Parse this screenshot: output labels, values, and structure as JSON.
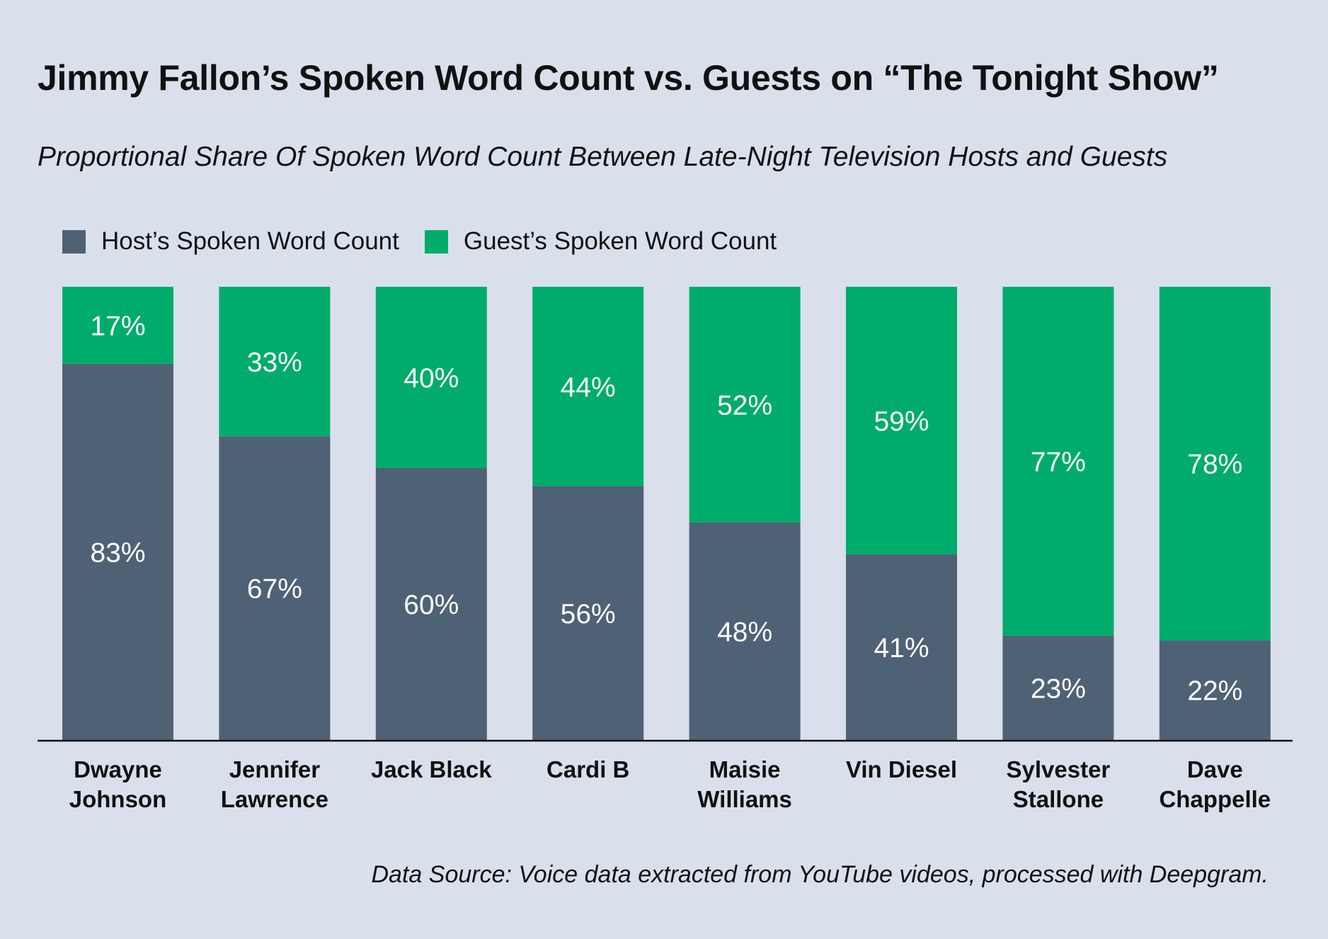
{
  "title": "Jimmy Fallon’s Spoken Word Count vs. Guests on “The Tonight Show”",
  "subtitle": "Proportional Share Of Spoken Word Count Between Late-Night Television Hosts and Guests",
  "source": "Data Source: Voice data extracted from YouTube videos, processed with Deepgram.",
  "colors": {
    "background": "#d9e0ec",
    "host": "#4f6175",
    "guest": "#00ac6b",
    "axis": "#111111",
    "value_label": "#ffffff"
  },
  "chart_data": {
    "type": "bar",
    "stacked": true,
    "categories": [
      [
        "Dwayne",
        "Johnson"
      ],
      [
        "Jennifer",
        "Lawrence"
      ],
      [
        "Jack Black"
      ],
      [
        "Cardi B"
      ],
      [
        "Maisie",
        "Williams"
      ],
      [
        "Vin Diesel"
      ],
      [
        "Sylvester",
        "Stallone"
      ],
      [
        "Dave",
        "Chappelle"
      ]
    ],
    "series": [
      {
        "name": "Host’s Spoken Word Count",
        "values": [
          83,
          67,
          60,
          56,
          48,
          41,
          23,
          22
        ],
        "labels": [
          "83%",
          "67%",
          "60%",
          "56%",
          "48%",
          "41%",
          "23%",
          "22%"
        ]
      },
      {
        "name": "Guest’s Spoken Word Count",
        "values": [
          17,
          33,
          40,
          44,
          52,
          59,
          77,
          78
        ],
        "labels": [
          "17%",
          "33%",
          "40%",
          "44%",
          "52%",
          "59%",
          "77%",
          "78%"
        ]
      }
    ],
    "ylim": [
      0,
      100
    ],
    "grid": false,
    "legend": "top-left"
  }
}
